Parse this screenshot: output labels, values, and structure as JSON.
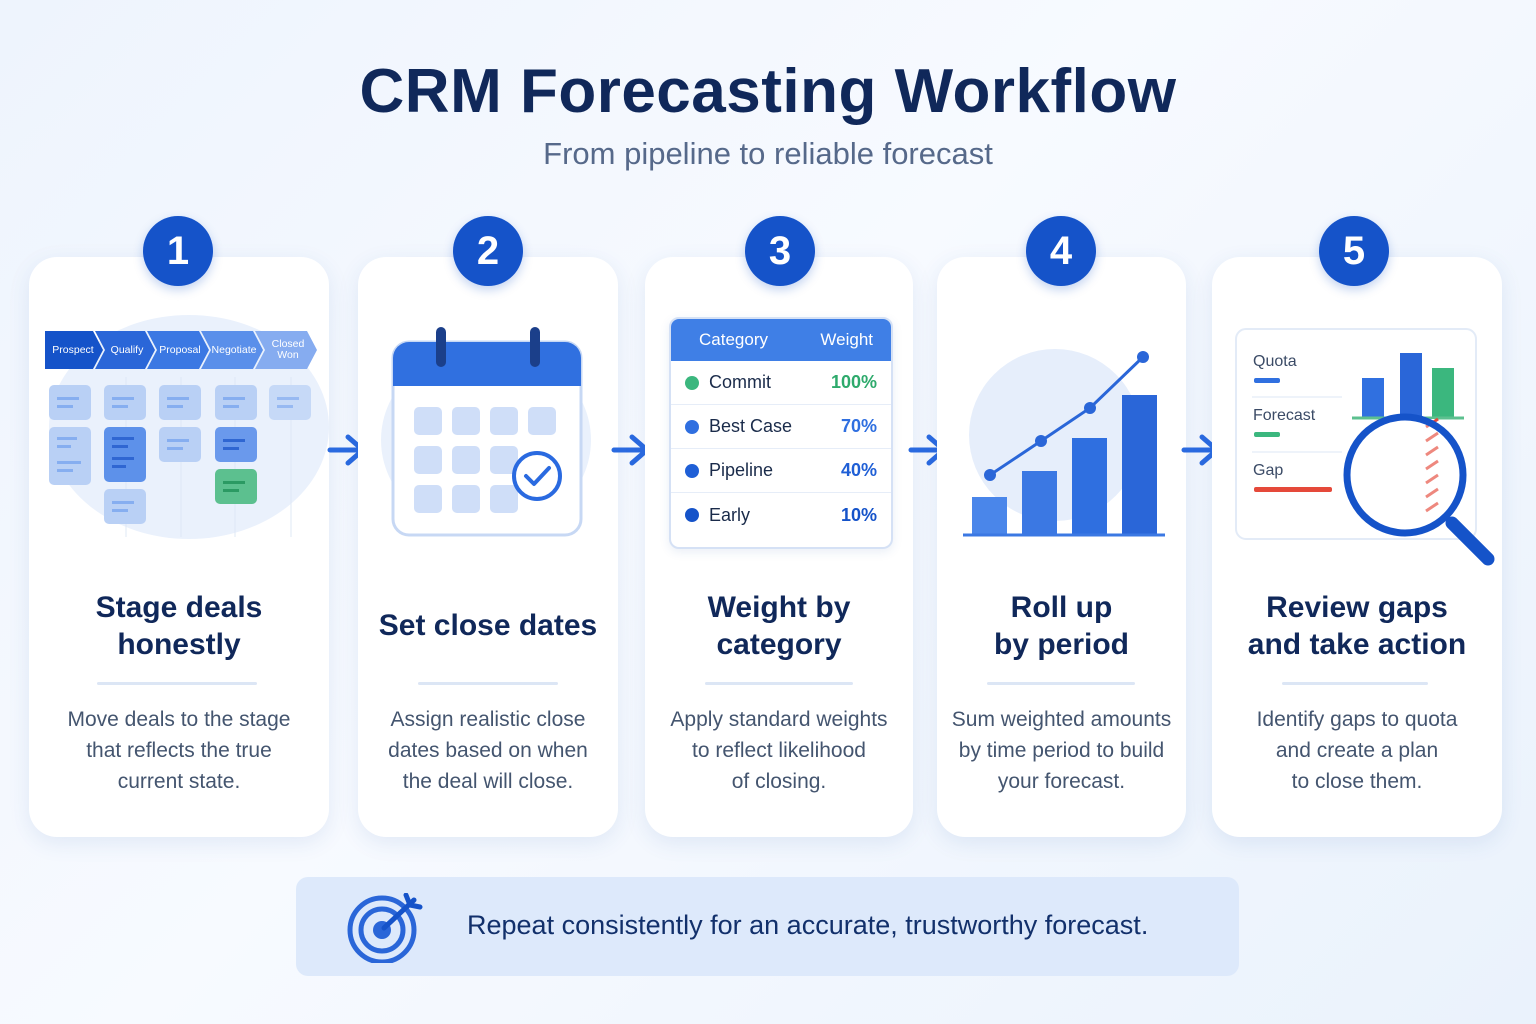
{
  "header": {
    "title": "CRM Forecasting Workflow",
    "subtitle": "From pipeline to reliable forecast"
  },
  "colors": {
    "primary": "#1553c9",
    "accent_blue": "#3f7fe6",
    "green": "#3bb77e",
    "red": "#e5493a",
    "title_navy": "#10285a"
  },
  "steps": [
    {
      "number": "1",
      "title_lines": [
        "Stage deals",
        "honestly"
      ],
      "desc_lines": [
        "Move deals to the stage",
        "that reflects the true",
        "current state."
      ],
      "illustration": {
        "type": "kanban-pipeline",
        "stages": [
          "Prospect",
          "Qualify",
          "Proposal",
          "Negotiate",
          "Closed Won"
        ]
      }
    },
    {
      "number": "2",
      "title_lines": [
        "Set close dates"
      ],
      "desc_lines": [
        "Assign realistic close",
        "dates based on when",
        "the deal will close."
      ],
      "illustration": {
        "type": "calendar-with-check",
        "icon": "calendar-icon"
      }
    },
    {
      "number": "3",
      "title_lines": [
        "Weight by",
        "category"
      ],
      "desc_lines": [
        "Apply standard weights",
        "to reflect likelihood",
        "of closing."
      ],
      "illustration": {
        "type": "weight-table",
        "headers": [
          "Category",
          "Weight"
        ],
        "rows": [
          {
            "category": "Commit",
            "weight": "100%",
            "color": "#3bb77e"
          },
          {
            "category": "Best Case",
            "weight": "70%",
            "color": "#2f6fe0"
          },
          {
            "category": "Pipeline",
            "weight": "40%",
            "color": "#1f5fd6"
          },
          {
            "category": "Early",
            "weight": "10%",
            "color": "#1553c9"
          }
        ]
      }
    },
    {
      "number": "4",
      "title_lines": [
        "Roll up",
        "by period"
      ],
      "desc_lines": [
        "Sum weighted amounts",
        "by time period to build",
        "your forecast."
      ],
      "illustration": {
        "type": "growth-bar-chart",
        "icon": "trend-chart-icon"
      }
    },
    {
      "number": "5",
      "title_lines": [
        "Review gaps",
        "and take action"
      ],
      "desc_lines": [
        "Identify gaps to quota",
        "and create a plan",
        "to close them."
      ],
      "illustration": {
        "type": "gap-review",
        "legend": [
          "Quota",
          "Forecast",
          "Gap"
        ],
        "icon": "magnifier-icon"
      }
    }
  ],
  "footer": {
    "text": "Repeat consistently for an accurate, trustworthy forecast.",
    "icon": "target-icon"
  }
}
